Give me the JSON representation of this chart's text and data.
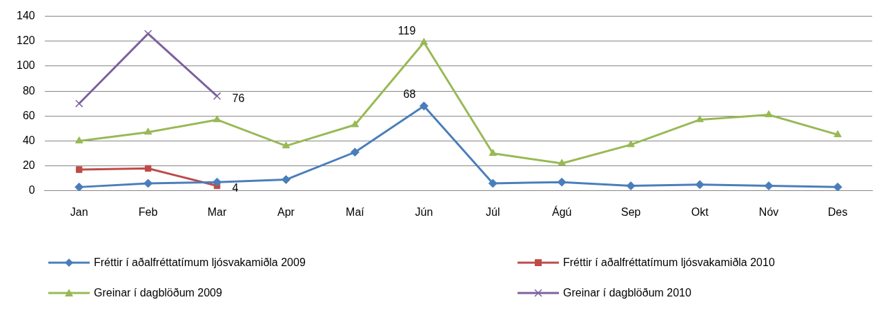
{
  "chart_data": {
    "type": "line",
    "categories": [
      "Jan",
      "Feb",
      "Mar",
      "Apr",
      "Maí",
      "Jún",
      "Júl",
      "Ágú",
      "Sep",
      "Okt",
      "Nóv",
      "Des"
    ],
    "ylim": [
      0,
      140
    ],
    "yticks": [
      0,
      20,
      40,
      60,
      80,
      100,
      120,
      140
    ],
    "grid": "y",
    "legend": "bottom",
    "series": [
      {
        "name": "Fréttir í aðalfréttatímum ljósvakamiðla 2009",
        "color": "#4a7ebb",
        "marker": "diamond",
        "values": [
          3,
          6,
          7,
          9,
          31,
          68,
          6,
          7,
          4,
          5,
          4,
          3
        ],
        "value_labels": [
          null,
          null,
          null,
          null,
          null,
          "68",
          null,
          null,
          null,
          null,
          null,
          null
        ]
      },
      {
        "name": "Fréttir í aðalfréttatímum ljósvakamiðla 2010",
        "color": "#be4b48",
        "marker": "square",
        "values": [
          17,
          18,
          4,
          null,
          null,
          null,
          null,
          null,
          null,
          null,
          null,
          null
        ],
        "value_labels": [
          null,
          null,
          "4",
          null,
          null,
          null,
          null,
          null,
          null,
          null,
          null,
          null
        ]
      },
      {
        "name": "Greinar í dagblöðum 2009",
        "color": "#98b954",
        "marker": "triangle",
        "values": [
          40,
          47,
          57,
          36,
          53,
          119,
          30,
          22,
          37,
          57,
          61,
          45
        ],
        "value_labels": [
          null,
          null,
          null,
          null,
          null,
          "119",
          null,
          null,
          null,
          null,
          null,
          null
        ]
      },
      {
        "name": "Greinar í dagblöðum 2010",
        "color": "#7d60a0",
        "marker": "cross",
        "values": [
          70,
          126,
          76,
          null,
          null,
          null,
          null,
          null,
          null,
          null,
          null,
          null
        ],
        "value_labels": [
          null,
          null,
          "76",
          null,
          null,
          null,
          null,
          null,
          null,
          null,
          null,
          null
        ]
      }
    ]
  }
}
